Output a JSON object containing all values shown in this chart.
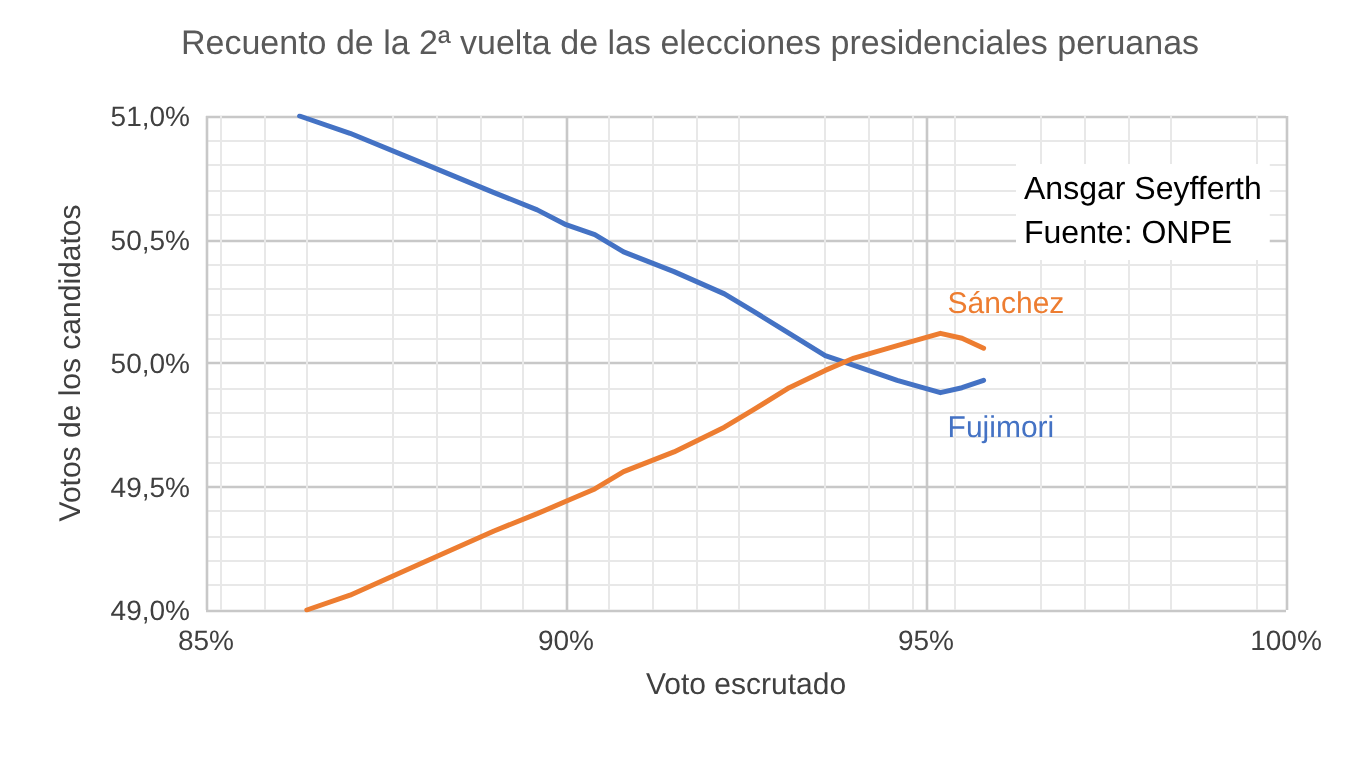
{
  "chart_data": {
    "type": "line",
    "title": "Recuento de la 2ª vuelta de las elecciones presidenciales peruanas",
    "xlabel": "Voto escrutado",
    "ylabel": "Votos de los candidatos",
    "annotations": [
      "Ansgar Seyfferth",
      "Fuente: ONPE"
    ],
    "series": [
      {
        "name": "Fujimori",
        "color": "#4472c4",
        "x": [
          86.3,
          87,
          88,
          89,
          89.6,
          90,
          90.4,
          90.8,
          91.5,
          92.2,
          92.6,
          93.1,
          93.6,
          94,
          94.6,
          95.2,
          95.5,
          95.8
        ],
        "values": [
          51.0,
          50.93,
          50.81,
          50.69,
          50.62,
          50.56,
          50.52,
          50.45,
          50.37,
          50.28,
          50.21,
          50.12,
          50.03,
          49.99,
          49.93,
          49.88,
          49.9,
          49.93
        ]
      },
      {
        "name": "Sánchez",
        "color": "#ed7d31",
        "x": [
          86.4,
          87,
          88,
          89,
          89.6,
          90,
          90.4,
          90.8,
          91.5,
          92.2,
          92.6,
          93.1,
          93.6,
          94,
          94.6,
          95.2,
          95.5,
          95.8
        ],
        "values": [
          49.0,
          49.06,
          49.19,
          49.32,
          49.39,
          49.44,
          49.49,
          49.56,
          49.64,
          49.74,
          49.81,
          49.9,
          49.97,
          50.02,
          50.07,
          50.12,
          50.1,
          50.06
        ]
      }
    ],
    "xlim": [
      85,
      100
    ],
    "ylim": [
      49,
      51
    ],
    "xticks": [
      {
        "value": 85,
        "label": "85%"
      },
      {
        "value": 90,
        "label": "90%"
      },
      {
        "value": 95,
        "label": "95%"
      },
      {
        "value": 100,
        "label": "100%"
      }
    ],
    "yticks": [
      {
        "value": 49,
        "label": "49,0%"
      },
      {
        "value": 49.5,
        "label": "49,5%"
      },
      {
        "value": 50,
        "label": "50,0%"
      },
      {
        "value": 50.5,
        "label": "50,5%"
      },
      {
        "value": 51,
        "label": "51,0%"
      }
    ],
    "grid": true,
    "legend": false,
    "marker": "none",
    "line_style": "solid"
  }
}
